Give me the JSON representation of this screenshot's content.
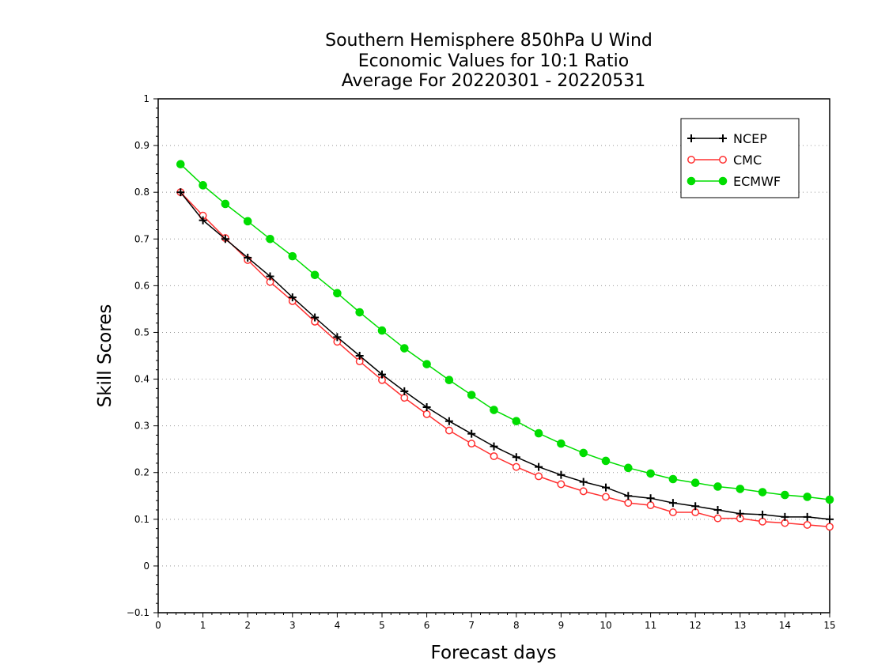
{
  "chart_data": {
    "type": "line",
    "title_lines": [
      "Southern Hemisphere 850hPa U Wind",
      "Economic Values for 10:1 Ratio",
      "Average For 20220301 - 20220531"
    ],
    "xlabel": "Forecast days",
    "ylabel": "Skill Scores",
    "xlim": [
      0,
      15
    ],
    "ylim": [
      -0.1,
      1
    ],
    "xticks": [
      0,
      1,
      2,
      3,
      4,
      5,
      6,
      7,
      8,
      9,
      10,
      11,
      12,
      13,
      14,
      15
    ],
    "yticks": [
      -0.1,
      0,
      0.1,
      0.2,
      0.3,
      0.4,
      0.5,
      0.6,
      0.7,
      0.8,
      0.9,
      1
    ],
    "xtick_labels": [
      "0",
      "1",
      "2",
      "3",
      "4",
      "5",
      "6",
      "7",
      "8",
      "9",
      "10",
      "11",
      "12",
      "13",
      "14",
      "15"
    ],
    "ytick_labels": [
      "−0.1",
      "0",
      "0.1",
      "0.2",
      "0.3",
      "0.4",
      "0.5",
      "0.6",
      "0.7",
      "0.8",
      "0.9",
      "1"
    ],
    "grid": "horizontal-dotted",
    "legend_position": "top-right",
    "x": [
      0.5,
      1,
      1.5,
      2,
      2.5,
      3,
      3.5,
      4,
      4.5,
      5,
      5.5,
      6,
      6.5,
      7,
      7.5,
      8,
      8.5,
      9,
      9.5,
      10,
      10.5,
      11,
      11.5,
      12,
      12.5,
      13,
      13.5,
      14,
      14.5,
      15
    ],
    "series": [
      {
        "name": "NCEP",
        "color": "#000000",
        "marker": "plus",
        "values": [
          0.8,
          0.74,
          0.7,
          0.66,
          0.62,
          0.575,
          0.532,
          0.49,
          0.45,
          0.41,
          0.374,
          0.34,
          0.31,
          0.283,
          0.256,
          0.233,
          0.212,
          0.195,
          0.18,
          0.168,
          0.15,
          0.145,
          0.135,
          0.128,
          0.12,
          0.112,
          0.11,
          0.105,
          0.105,
          0.1
        ]
      },
      {
        "name": "CMC",
        "color": "#ff3030",
        "marker": "open-circle",
        "values": [
          0.8,
          0.75,
          0.702,
          0.655,
          0.608,
          0.567,
          0.523,
          0.48,
          0.438,
          0.398,
          0.36,
          0.325,
          0.29,
          0.262,
          0.235,
          0.212,
          0.192,
          0.175,
          0.16,
          0.148,
          0.135,
          0.13,
          0.115,
          0.115,
          0.102,
          0.102,
          0.095,
          0.092,
          0.088,
          0.084
        ]
      },
      {
        "name": "ECMWF",
        "color": "#00dd00",
        "marker": "filled-circle",
        "values": [
          0.86,
          0.815,
          0.775,
          0.738,
          0.7,
          0.663,
          0.623,
          0.584,
          0.543,
          0.504,
          0.466,
          0.432,
          0.398,
          0.366,
          0.334,
          0.31,
          0.284,
          0.262,
          0.242,
          0.225,
          0.21,
          0.198,
          0.186,
          0.178,
          0.17,
          0.165,
          0.158,
          0.152,
          0.148,
          0.142
        ]
      }
    ]
  }
}
